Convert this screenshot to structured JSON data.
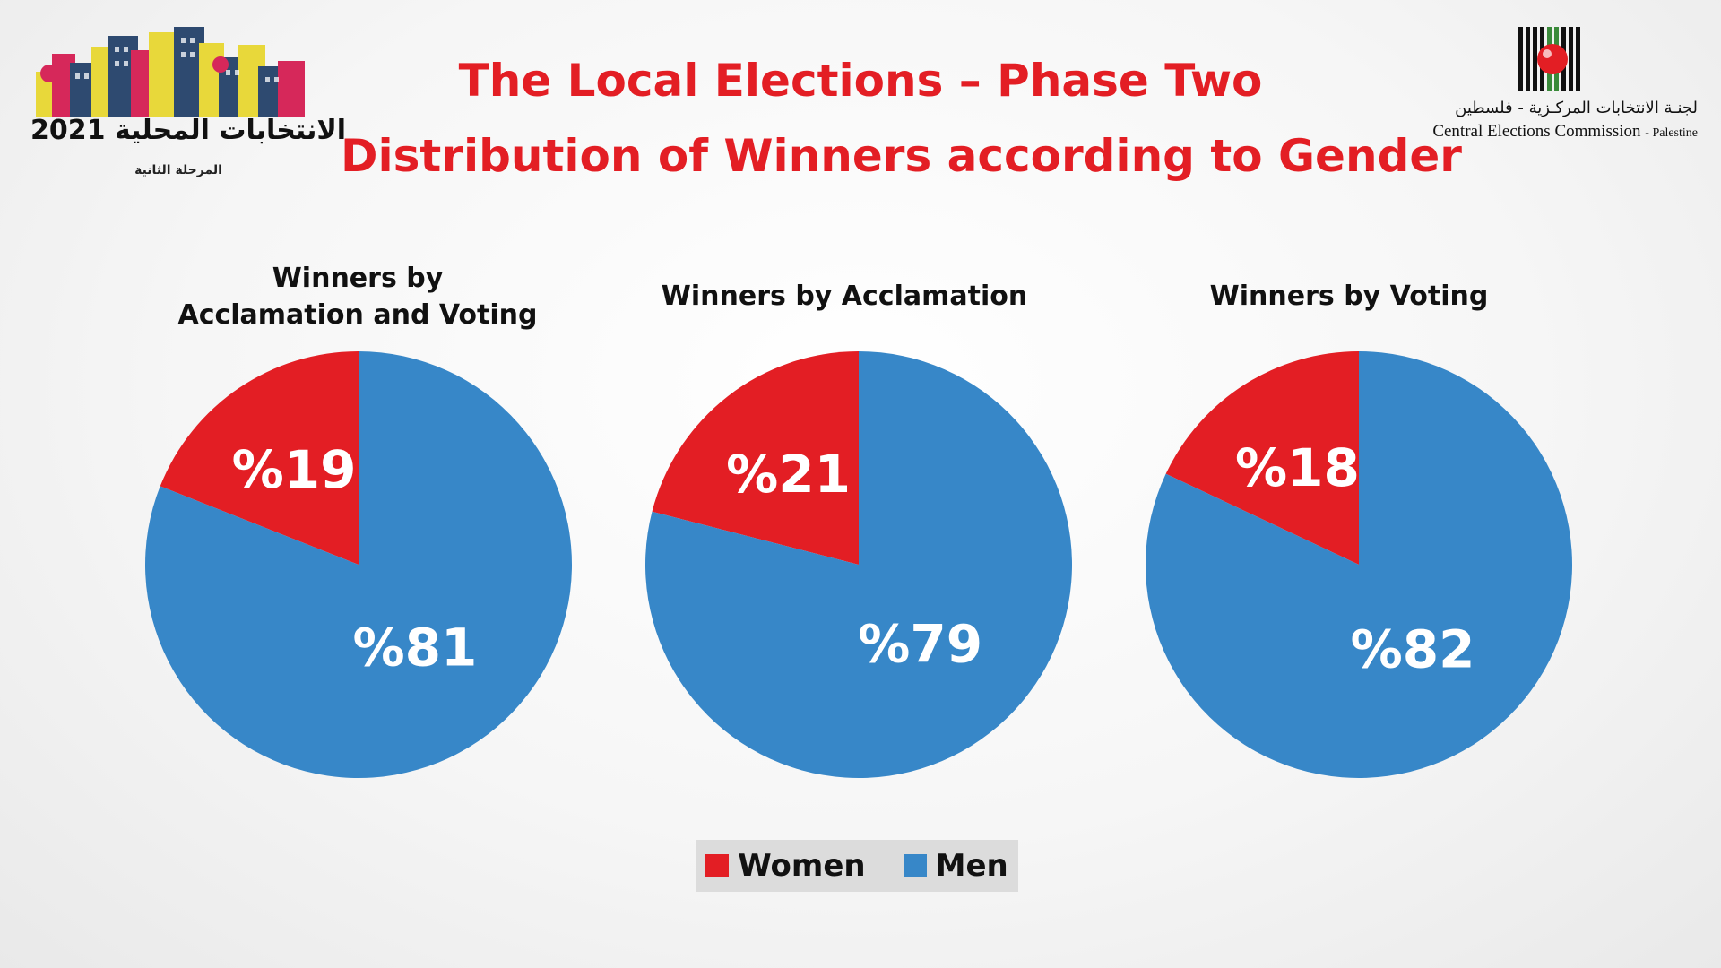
{
  "header": {
    "title_line1": "The Local Elections – Phase Two",
    "title_line2": "Distribution of Winners according to Gender"
  },
  "logo_left": {
    "year_text": "2021 الانتخابات المحلية",
    "subtitle": "المرحلة الثانية"
  },
  "logo_right": {
    "arabic_name": "لجنـة الانتخابات المركـزية - فلسطين",
    "english_name": "Central Elections Commission",
    "english_suffix": "- Palestine"
  },
  "colors": {
    "women": "#e31e24",
    "men": "#3787c8",
    "title": "#e31e24"
  },
  "chart_data": [
    {
      "type": "pie",
      "title": "Winners by\nAcclamation and Voting",
      "categories": [
        "Women",
        "Men"
      ],
      "values": [
        19,
        81
      ],
      "labels": [
        "%19",
        "%81"
      ]
    },
    {
      "type": "pie",
      "title": "Winners by Acclamation",
      "categories": [
        "Women",
        "Men"
      ],
      "values": [
        21,
        79
      ],
      "labels": [
        "%21",
        "%79"
      ]
    },
    {
      "type": "pie",
      "title": "Winners by Voting",
      "categories": [
        "Women",
        "Men"
      ],
      "values": [
        18,
        82
      ],
      "labels": [
        "%18",
        "%82"
      ]
    }
  ],
  "legend": {
    "women_label": "Women",
    "men_label": "Men"
  }
}
